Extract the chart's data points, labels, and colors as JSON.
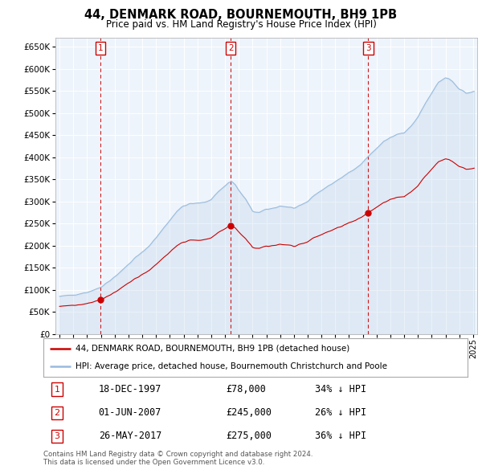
{
  "title": "44, DENMARK ROAD, BOURNEMOUTH, BH9 1PB",
  "subtitle": "Price paid vs. HM Land Registry's House Price Index (HPI)",
  "sale_info": [
    {
      "num": "1",
      "date": "18-DEC-1997",
      "price": "£78,000",
      "note": "34% ↓ HPI"
    },
    {
      "num": "2",
      "date": "01-JUN-2007",
      "price": "£245,000",
      "note": "26% ↓ HPI"
    },
    {
      "num": "3",
      "date": "26-MAY-2017",
      "price": "£275,000",
      "note": "36% ↓ HPI"
    }
  ],
  "sale_years_decimal": [
    1997.958,
    2007.417,
    2017.4
  ],
  "sale_prices": [
    78000,
    245000,
    275000
  ],
  "legend_property": "44, DENMARK ROAD, BOURNEMOUTH, BH9 1PB (detached house)",
  "legend_hpi": "HPI: Average price, detached house, Bournemouth Christchurch and Poole",
  "footer1": "Contains HM Land Registry data © Crown copyright and database right 2024.",
  "footer2": "This data is licensed under the Open Government Licence v3.0.",
  "property_color": "#cc0000",
  "hpi_color": "#99bbdd",
  "background_color": "#ffffff",
  "grid_color": "#c8d8e8",
  "yticks": [
    0,
    50000,
    100000,
    150000,
    200000,
    250000,
    300000,
    350000,
    400000,
    450000,
    500000,
    550000,
    600000,
    650000
  ],
  "ylim": [
    0,
    670000
  ]
}
